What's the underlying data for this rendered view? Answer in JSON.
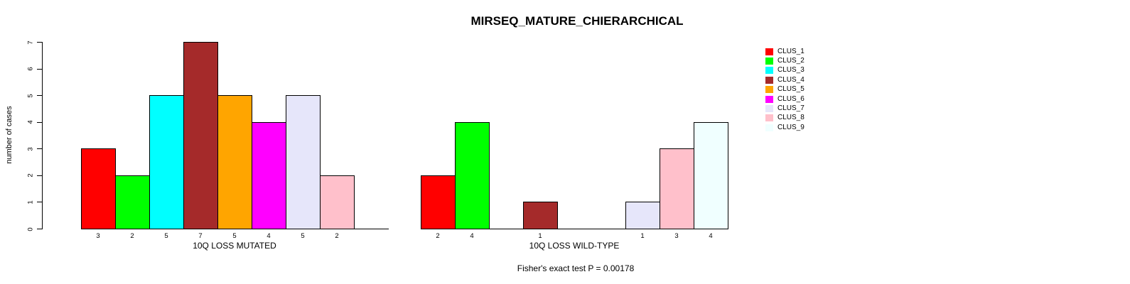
{
  "chart_data": {
    "type": "bar",
    "title": "MIRSEQ_MATURE_CHIERARCHICAL",
    "ylabel": "number of cases",
    "footer": "Fisher's exact test P = 0.00178",
    "ylim": [
      0,
      7
    ],
    "yticks": [
      0,
      1,
      2,
      3,
      4,
      5,
      6,
      7
    ],
    "grid": false,
    "legend_position": "right",
    "clusters": [
      {
        "label": "CLUS_1",
        "color": "#FF0000"
      },
      {
        "label": "CLUS_2",
        "color": "#00FF00"
      },
      {
        "label": "CLUS_3",
        "color": "#00FFFF"
      },
      {
        "label": "CLUS_4",
        "color": "#A52A2A"
      },
      {
        "label": "CLUS_5",
        "color": "#FFA500"
      },
      {
        "label": "CLUS_6",
        "color": "#FF00FF"
      },
      {
        "label": "CLUS_7",
        "color": "#E6E6FA"
      },
      {
        "label": "CLUS_8",
        "color": "#FFC0CB"
      },
      {
        "label": "CLUS_9",
        "color": "#F0FFFF"
      }
    ],
    "panels": [
      {
        "xlabel": "10Q LOSS MUTATED",
        "values": [
          3,
          2,
          5,
          7,
          5,
          4,
          5,
          2,
          0
        ]
      },
      {
        "xlabel": "10Q LOSS WILD-TYPE",
        "values": [
          2,
          4,
          0,
          1,
          0,
          0,
          1,
          3,
          4
        ]
      }
    ]
  }
}
